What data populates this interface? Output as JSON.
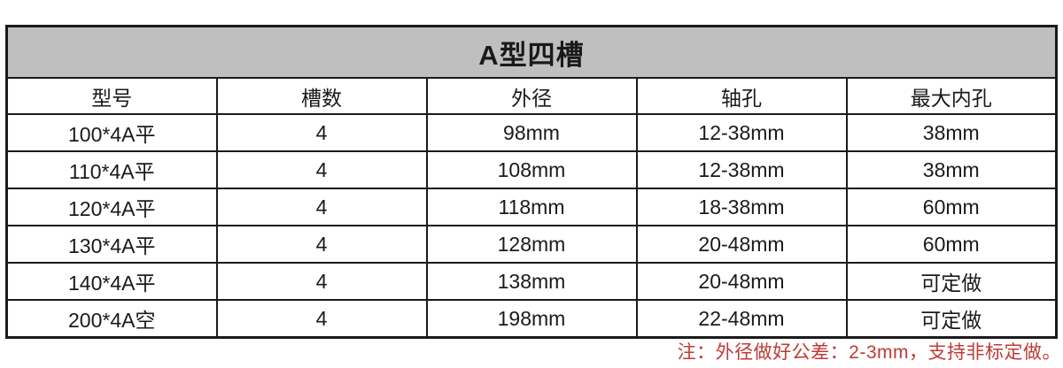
{
  "page": {
    "background": "#ffffff",
    "text_color": "#1a1a1a",
    "border_color": "#1a1a1a"
  },
  "table": {
    "title": "A型四槽",
    "title_bg": "#bfbfbf",
    "columns": [
      "型号",
      "槽数",
      "外径",
      "轴孔",
      "最大内孔"
    ],
    "rows": [
      [
        "100*4A平",
        "4",
        "98mm",
        "12-38mm",
        "38mm"
      ],
      [
        "110*4A平",
        "4",
        "108mm",
        "12-38mm",
        "38mm"
      ],
      [
        "120*4A平",
        "4",
        "118mm",
        "18-38mm",
        "60mm"
      ],
      [
        "130*4A平",
        "4",
        "128mm",
        "20-48mm",
        "60mm"
      ],
      [
        "140*4A平",
        "4",
        "138mm",
        "20-48mm",
        "可定做"
      ],
      [
        "200*4A空",
        "4",
        "198mm",
        "22-48mm",
        "可定做"
      ]
    ]
  },
  "note": {
    "text": "注：外径做好公差：2-3mm，支持非标定做。",
    "color": "#be3b35"
  }
}
